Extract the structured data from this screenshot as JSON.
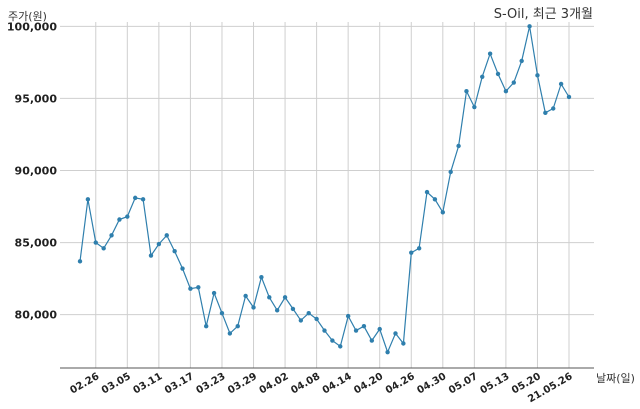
{
  "chart_data": {
    "type": "line",
    "title": "S-Oil, 최근 3개월",
    "ylabel": "주가(원)",
    "xlabel": "날짜(일)",
    "ylim": [
      76300,
      100300
    ],
    "grid": true,
    "color": "#2f7fad",
    "yticks": [
      80000,
      85000,
      90000,
      95000,
      100000
    ],
    "ytick_labels": [
      "80,000",
      "85,000",
      "90,000",
      "95,000",
      "100,000"
    ],
    "xtick_positions": [
      2,
      6,
      10,
      14,
      18,
      22,
      26,
      30,
      34,
      38,
      42,
      46,
      50,
      54,
      58,
      62
    ],
    "xtick_labels": [
      "02.26",
      "03.05",
      "03.11",
      "03.17",
      "03.23",
      "03.29",
      "04.02",
      "04.08",
      "04.14",
      "04.20",
      "04.26",
      "04.30",
      "05.07",
      "05.13",
      "05.20",
      "21.05.26"
    ],
    "values": [
      83700,
      88000,
      85000,
      84600,
      85500,
      86600,
      86800,
      88100,
      88000,
      84100,
      84900,
      85500,
      84400,
      83200,
      81800,
      81900,
      79200,
      81500,
      80100,
      78700,
      79200,
      81300,
      80500,
      82600,
      81200,
      80300,
      81200,
      80400,
      79600,
      80100,
      79700,
      78900,
      78200,
      77800,
      79900,
      78900,
      79200,
      78200,
      79000,
      77400,
      78700,
      78000,
      84300,
      84600,
      88500,
      88000,
      87100,
      89900,
      91700,
      95500,
      94400,
      96500,
      98100,
      96700,
      95500,
      96100,
      97600,
      100000,
      96600,
      94000,
      94300,
      96000,
      95100
    ]
  }
}
